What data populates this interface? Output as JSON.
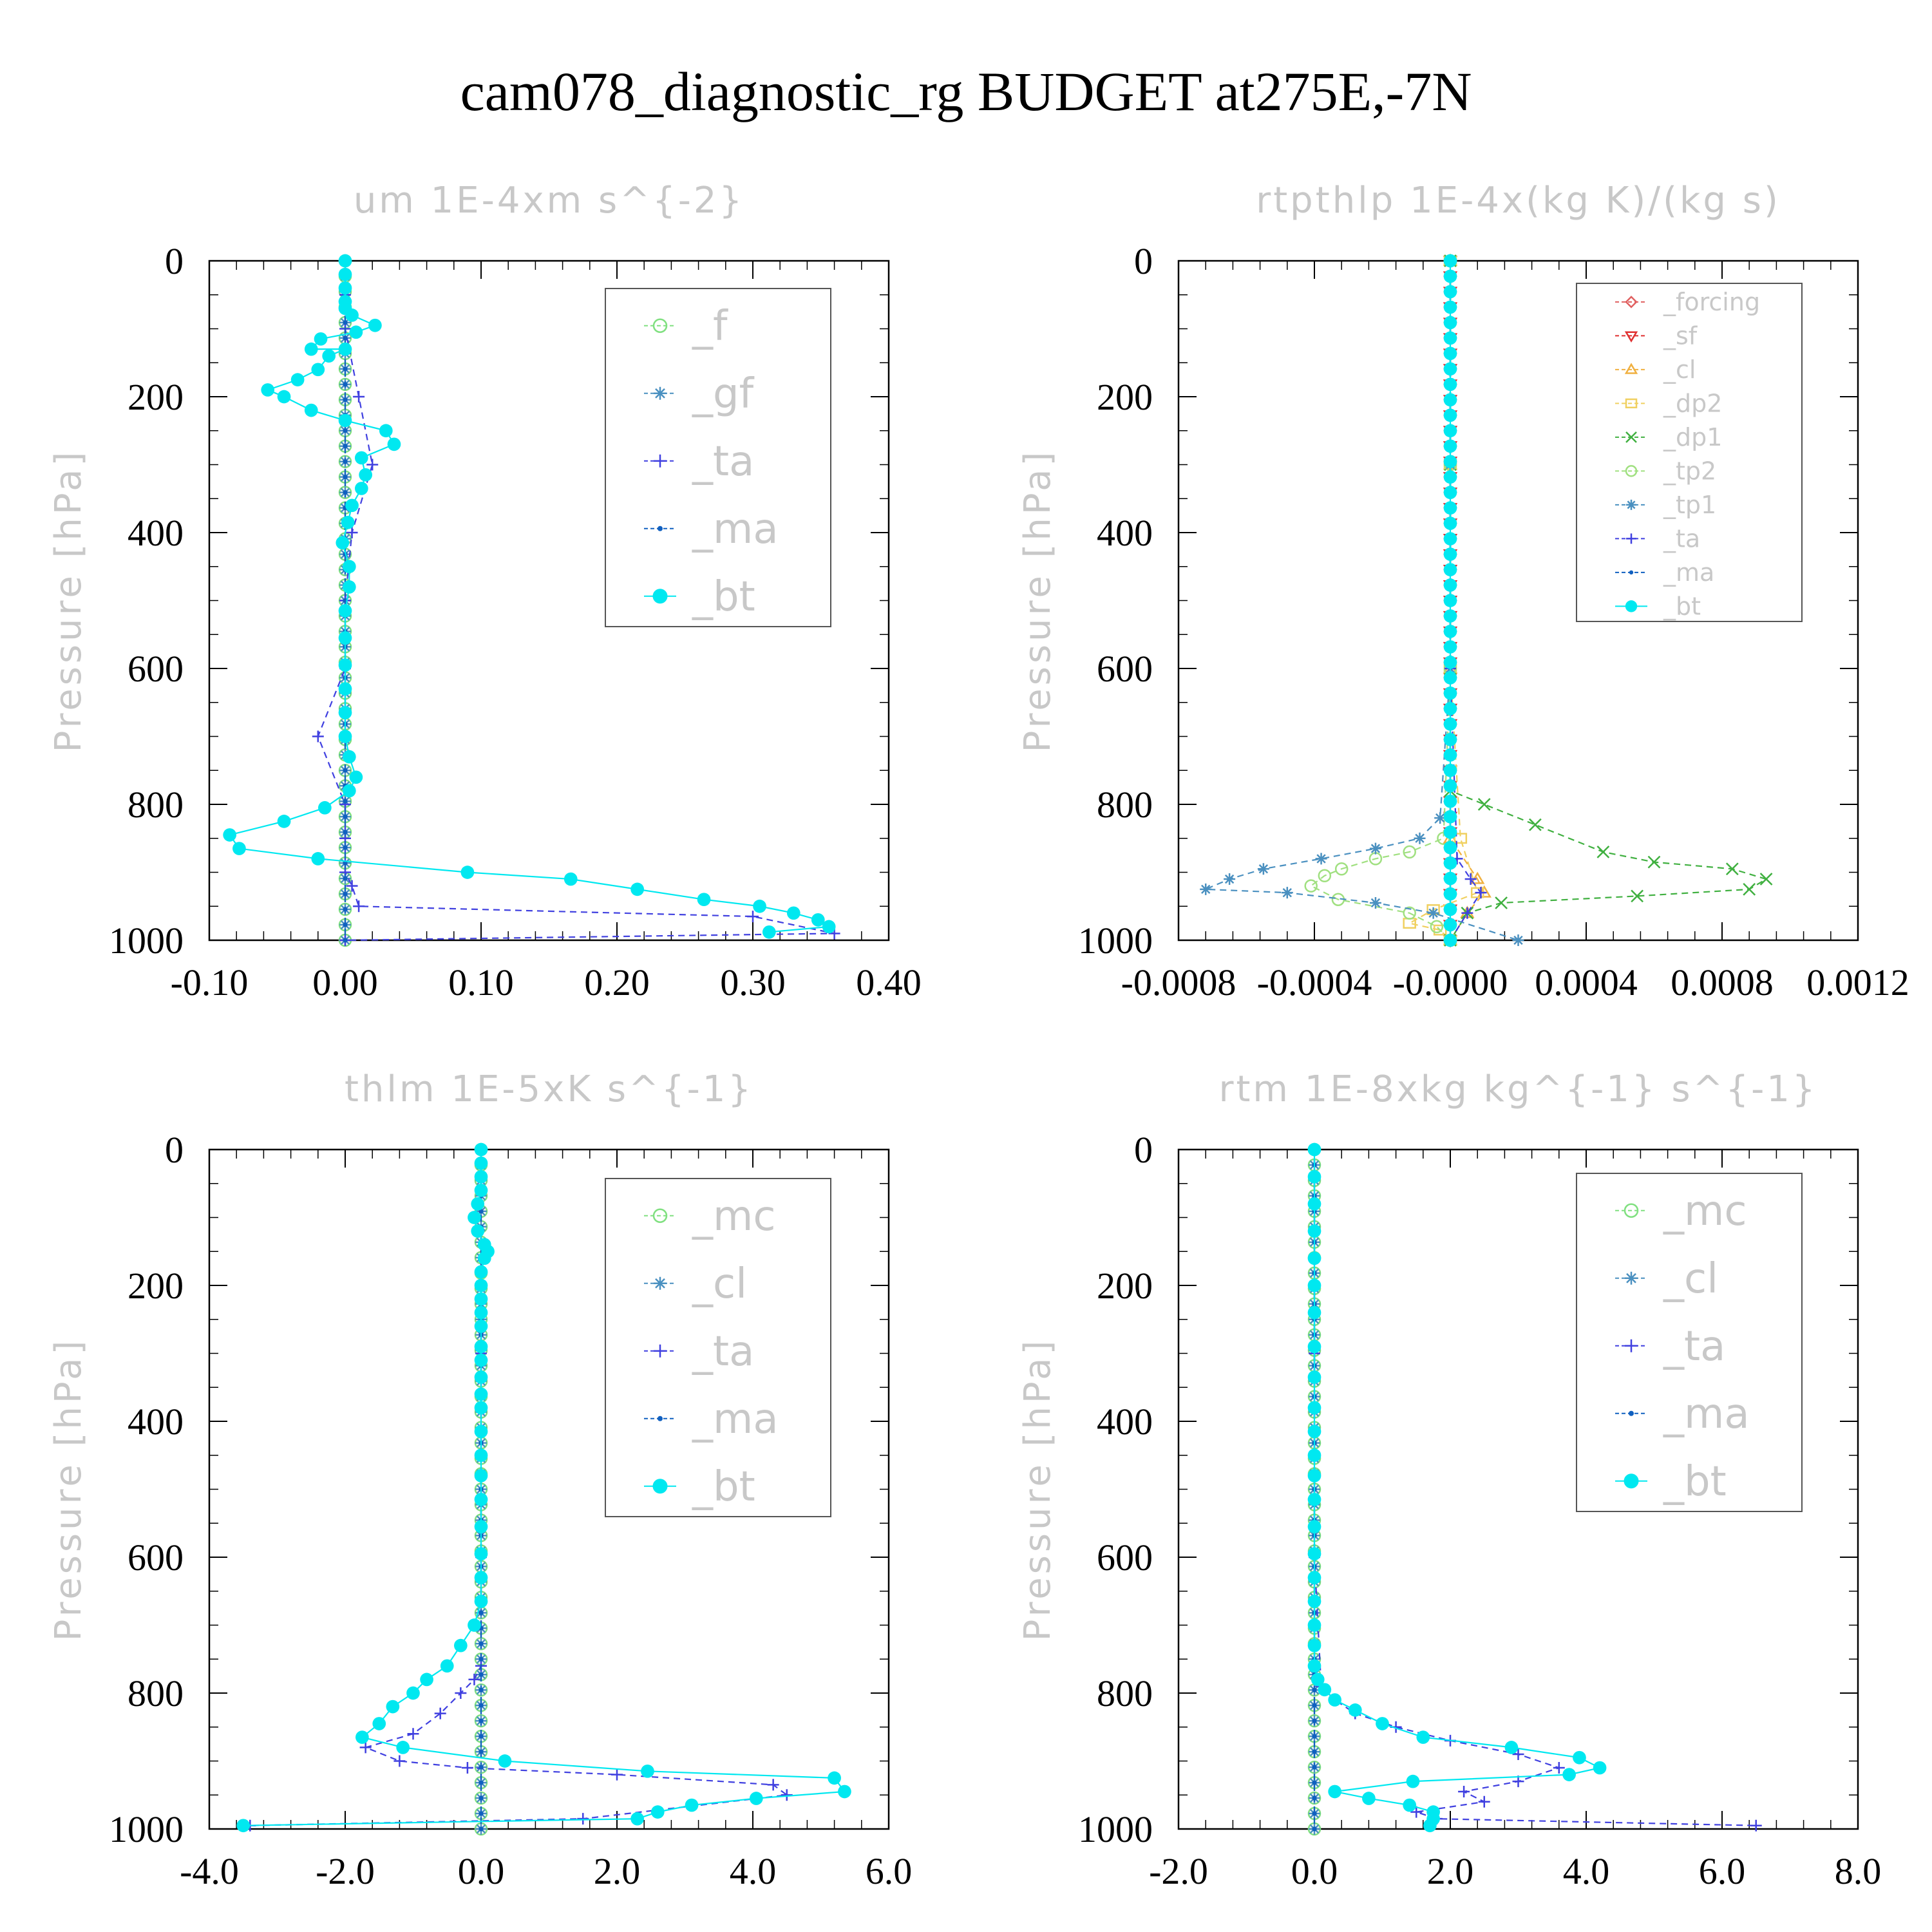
{
  "title": "cam078_diagnostic_rg  BUDGET at275E,-7N",
  "chart_data": [
    {
      "type": "line",
      "title": "um  1E-4xm s^{-2}",
      "ylabel": "Pressure [hPa]",
      "xlim": [
        -0.1,
        0.4
      ],
      "ylim": [
        1000,
        0
      ],
      "xticks": [
        "-0.10",
        "0.00",
        "0.10",
        "0.20",
        "0.30",
        "0.40"
      ],
      "yticks": [
        "0",
        "200",
        "400",
        "600",
        "800",
        "1000"
      ],
      "legend_position": "top-right",
      "series": [
        {
          "name": "_f",
          "color": "#80e080",
          "marker": "circle-open",
          "x": [
            0,
            0,
            0,
            0,
            0
          ],
          "y": [
            0,
            250,
            500,
            750,
            1000
          ]
        },
        {
          "name": "_gf",
          "color": "#4a90c0",
          "marker": "star",
          "x": [
            0,
            0,
            0,
            0,
            0
          ],
          "y": [
            0,
            250,
            500,
            750,
            1000
          ]
        },
        {
          "name": "_ta",
          "color": "#4040e0",
          "marker": "plus",
          "x": [
            0,
            0,
            0,
            0.01,
            0.02,
            0.005,
            0.0,
            0.0,
            -0.02,
            0.0,
            0.0,
            0.0,
            0.005,
            0.01,
            0.3,
            0.36,
            0.0
          ],
          "y": [
            0,
            50,
            100,
            200,
            300,
            400,
            500,
            600,
            700,
            800,
            850,
            900,
            920,
            950,
            965,
            990,
            1000
          ]
        },
        {
          "name": "_ma",
          "color": "#1060c0",
          "marker": "dot",
          "x": [
            0,
            0,
            0,
            0,
            0
          ],
          "y": [
            0,
            250,
            500,
            750,
            1000
          ]
        },
        {
          "name": "_bt",
          "color": "#00e8f0",
          "marker": "filled-circle",
          "x": [
            0,
            0,
            0,
            0,
            0,
            0.005,
            0.022,
            0.008,
            -0.018,
            -0.025,
            0.0,
            -0.012,
            -0.02,
            -0.035,
            -0.057,
            -0.045,
            -0.025,
            0.0,
            0.03,
            0.036,
            0.012,
            0.015,
            0.012,
            0.005,
            0.002,
            -0.002,
            0.003,
            0.003,
            0.0,
            0.0,
            0.0,
            0.0,
            0.0,
            0.0,
            0.003,
            0.008,
            0.003,
            -0.015,
            -0.045,
            -0.085,
            -0.078,
            -0.02,
            0.09,
            0.166,
            0.215,
            0.264,
            0.305,
            0.33,
            0.348,
            0.356,
            0.312
          ],
          "y": [
            0,
            20,
            40,
            60,
            70,
            80,
            95,
            105,
            115,
            130,
            130,
            140,
            160,
            175,
            190,
            200,
            220,
            235,
            250,
            270,
            290,
            315,
            335,
            360,
            385,
            415,
            450,
            480,
            515,
            555,
            595,
            630,
            665,
            700,
            730,
            760,
            780,
            805,
            825,
            845,
            865,
            880,
            900,
            910,
            925,
            940,
            950,
            960,
            970,
            980,
            988
          ]
        }
      ]
    },
    {
      "type": "line",
      "title": "rtpthlp  1E-4x(kg K)/(kg s)",
      "ylabel": "Pressure [hPa]",
      "xlim": [
        -0.0008,
        0.0012
      ],
      "ylim": [
        1000,
        0
      ],
      "xticks": [
        "-0.0008",
        "-0.0004",
        "-0.0000",
        "0.0004",
        "0.0008",
        "0.0012"
      ],
      "yticks": [
        "0",
        "200",
        "400",
        "600",
        "800",
        "1000"
      ],
      "legend_position": "top-right",
      "series": [
        {
          "name": "_forcing",
          "color": "#e06060",
          "marker": "diamond-open",
          "x": [
            0,
            0,
            0,
            0,
            0
          ],
          "y": [
            0,
            250,
            500,
            750,
            1000
          ]
        },
        {
          "name": "_sf",
          "color": "#e03030",
          "marker": "triangle-down",
          "x": [
            0,
            0,
            0,
            0,
            0
          ],
          "y": [
            0,
            250,
            500,
            750,
            1000
          ]
        },
        {
          "name": "_cl",
          "color": "#f0b040",
          "marker": "triangle-up",
          "x": [
            0,
            0,
            0,
            0,
            8e-05,
            0.0001,
            5e-05,
            0
          ],
          "y": [
            0,
            300,
            600,
            850,
            910,
            930,
            960,
            1000
          ]
        },
        {
          "name": "_dp2",
          "color": "#f0d060",
          "marker": "square-open",
          "x": [
            0,
            0,
            0,
            3e-05,
            8e-05,
            -5e-05,
            -0.00012,
            -3e-05,
            0
          ],
          "y": [
            0,
            300,
            600,
            850,
            930,
            955,
            975,
            985,
            1000
          ]
        },
        {
          "name": "_dp1",
          "color": "#40b040",
          "marker": "x",
          "x": [
            0,
            0,
            0,
            0.0,
            0.0001,
            0.00025,
            0.00045,
            0.0006,
            0.00083,
            0.00093,
            0.00088,
            0.00055,
            0.00015,
            5e-05,
            0.0
          ],
          "y": [
            0,
            300,
            600,
            780,
            800,
            830,
            870,
            885,
            895,
            910,
            925,
            935,
            945,
            960,
            1000
          ]
        },
        {
          "name": "_tp2",
          "color": "#a0e080",
          "marker": "circle-open",
          "x": [
            0,
            0,
            0,
            -2e-05,
            -0.00012,
            -0.00022,
            -0.00032,
            -0.00037,
            -0.00041,
            -0.00033,
            -0.00012,
            -4e-05,
            0.0
          ],
          "y": [
            0,
            300,
            600,
            850,
            870,
            880,
            895,
            905,
            920,
            940,
            960,
            980,
            1000
          ]
        },
        {
          "name": "_tp1",
          "color": "#4a90c0",
          "marker": "star",
          "x": [
            0,
            0,
            0,
            -3e-05,
            -9e-05,
            -0.00022,
            -0.00038,
            -0.00055,
            -0.00065,
            -0.00072,
            -0.00048,
            -0.00022,
            -5e-05,
            0.0002
          ],
          "y": [
            0,
            300,
            600,
            820,
            850,
            865,
            880,
            895,
            910,
            925,
            930,
            945,
            960,
            1000
          ]
        },
        {
          "name": "_ta",
          "color": "#4040e0",
          "marker": "plus",
          "x": [
            0,
            0,
            0,
            2e-05,
            6e-05,
            9e-05,
            5e-05,
            0.0
          ],
          "y": [
            0,
            300,
            600,
            880,
            910,
            930,
            960,
            1000
          ]
        },
        {
          "name": "_ma",
          "color": "#1060c0",
          "marker": "dot",
          "x": [
            0,
            0,
            0,
            0,
            0
          ],
          "y": [
            0,
            250,
            500,
            750,
            1000
          ]
        },
        {
          "name": "_bt",
          "color": "#00e8f0",
          "marker": "filled-circle",
          "x": [
            0,
            0,
            0,
            0,
            0
          ],
          "y": [
            0,
            250,
            500,
            750,
            1000
          ]
        }
      ]
    },
    {
      "type": "line",
      "title": "thlm  1E-5xK s^{-1}",
      "ylabel": "Pressure [hPa]",
      "xlim": [
        -4.0,
        6.0
      ],
      "ylim": [
        1000,
        0
      ],
      "xticks": [
        "-4.0",
        "-2.0",
        "0.0",
        "2.0",
        "4.0",
        "6.0"
      ],
      "yticks": [
        "0",
        "200",
        "400",
        "600",
        "800",
        "1000"
      ],
      "legend_position": "top-right",
      "series": [
        {
          "name": "_mc",
          "color": "#80e080",
          "marker": "circle-open",
          "x": [
            0,
            0,
            0,
            0,
            0
          ],
          "y": [
            0,
            250,
            500,
            750,
            1000
          ]
        },
        {
          "name": "_cl",
          "color": "#4a90c0",
          "marker": "star",
          "x": [
            0,
            0,
            0,
            0,
            0
          ],
          "y": [
            0,
            250,
            500,
            750,
            1000
          ]
        },
        {
          "name": "_ta",
          "color": "#4040e0",
          "marker": "plus",
          "x": [
            0,
            0,
            0,
            0,
            -0.1,
            -0.3,
            -0.6,
            -1.0,
            -1.7,
            -1.2,
            -0.2,
            2.0,
            4.3,
            4.5,
            1.5,
            -3.4
          ],
          "y": [
            0,
            300,
            600,
            760,
            780,
            800,
            830,
            860,
            880,
            900,
            910,
            920,
            935,
            950,
            985,
            995
          ]
        },
        {
          "name": "_ma",
          "color": "#1060c0",
          "marker": "dot",
          "x": [
            0,
            0,
            0,
            0,
            0
          ],
          "y": [
            0,
            250,
            500,
            750,
            1000
          ]
        },
        {
          "name": "_bt",
          "color": "#00e8f0",
          "marker": "filled-circle",
          "x": [
            0,
            0,
            0,
            0,
            -0.05,
            -0.1,
            -0.05,
            0.05,
            0.1,
            0.05,
            0,
            0,
            0,
            0,
            0,
            0,
            0,
            0,
            0,
            0,
            0,
            0,
            0,
            0,
            0,
            0,
            0,
            0,
            -0.1,
            -0.3,
            -0.5,
            -0.8,
            -1.0,
            -1.3,
            -1.5,
            -1.75,
            -1.15,
            0.35,
            2.45,
            5.2,
            5.35,
            4.05,
            3.1,
            2.6,
            2.3,
            -3.5
          ],
          "y": [
            0,
            20,
            40,
            60,
            80,
            100,
            120,
            140,
            150,
            160,
            180,
            200,
            220,
            240,
            260,
            290,
            310,
            335,
            360,
            380,
            415,
            450,
            480,
            515,
            555,
            595,
            630,
            665,
            700,
            730,
            760,
            780,
            800,
            820,
            845,
            865,
            880,
            900,
            915,
            925,
            945,
            955,
            965,
            975,
            985,
            995
          ]
        }
      ]
    },
    {
      "type": "line",
      "title": "rtm  1E-8xkg kg^{-1} s^{-1}",
      "ylabel": "Pressure [hPa]",
      "xlim": [
        -2.0,
        8.0
      ],
      "ylim": [
        1000,
        0
      ],
      "xticks": [
        "-2.0",
        "0.0",
        "2.0",
        "4.0",
        "6.0",
        "8.0"
      ],
      "yticks": [
        "0",
        "200",
        "400",
        "600",
        "800",
        "1000"
      ],
      "legend_position": "top-right",
      "series": [
        {
          "name": "_mc",
          "color": "#80e080",
          "marker": "circle-open",
          "x": [
            0,
            0,
            0,
            0,
            0
          ],
          "y": [
            0,
            250,
            500,
            750,
            1000
          ]
        },
        {
          "name": "_cl",
          "color": "#4a90c0",
          "marker": "star",
          "x": [
            0,
            0,
            0,
            0,
            0
          ],
          "y": [
            0,
            250,
            500,
            750,
            1000
          ]
        },
        {
          "name": "_ta",
          "color": "#4040e0",
          "marker": "plus",
          "x": [
            0,
            0,
            0,
            0.1,
            0.3,
            0.6,
            1.2,
            2.0,
            3.0,
            3.6,
            3.0,
            2.2,
            2.5,
            1.5,
            1.8,
            6.5
          ],
          "y": [
            0,
            300,
            600,
            790,
            810,
            830,
            850,
            870,
            890,
            910,
            930,
            945,
            960,
            975,
            985,
            995
          ]
        },
        {
          "name": "_ma",
          "color": "#1060c0",
          "marker": "dot",
          "x": [
            0,
            0,
            0,
            0,
            0
          ],
          "y": [
            0,
            250,
            500,
            750,
            1000
          ]
        },
        {
          "name": "_bt",
          "color": "#00e8f0",
          "marker": "filled-circle",
          "x": [
            0,
            0,
            0,
            0,
            0,
            0,
            0,
            0,
            0,
            0,
            0,
            0,
            0,
            0,
            0,
            0,
            0,
            0,
            0,
            0,
            0,
            0.05,
            0.15,
            0.3,
            0.6,
            1.0,
            1.6,
            2.9,
            3.9,
            4.2,
            3.75,
            1.45,
            0.3,
            0.8,
            1.4,
            1.75,
            1.75,
            1.7
          ],
          "y": [
            0,
            40,
            80,
            120,
            160,
            200,
            240,
            290,
            335,
            380,
            415,
            450,
            480,
            515,
            555,
            595,
            630,
            665,
            700,
            730,
            760,
            780,
            795,
            810,
            825,
            845,
            865,
            880,
            895,
            910,
            920,
            930,
            945,
            955,
            965,
            975,
            985,
            995
          ]
        }
      ]
    }
  ]
}
